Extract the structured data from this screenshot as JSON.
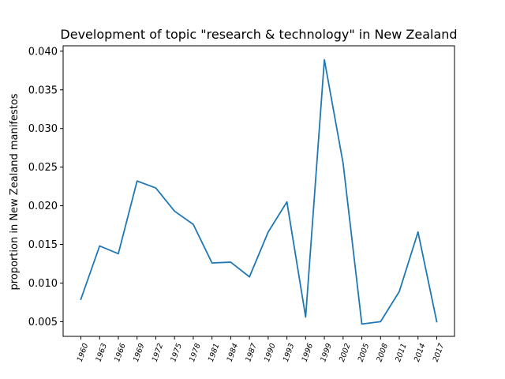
{
  "chart_data": {
    "type": "line",
    "title": "Development of topic \"research & technology\" in New Zealand",
    "xlabel": "",
    "ylabel": "proportion in New Zealand manifestos",
    "categories": [
      "1960",
      "1963",
      "1966",
      "1969",
      "1972",
      "1975",
      "1978",
      "1981",
      "1984",
      "1987",
      "1990",
      "1993",
      "1996",
      "1999",
      "2002",
      "2005",
      "2008",
      "2011",
      "2014",
      "2017"
    ],
    "series": [
      {
        "values": [
          0.0079,
          0.0148,
          0.0138,
          0.0232,
          0.0223,
          0.0193,
          0.0176,
          0.0126,
          0.0127,
          0.0108,
          0.0166,
          0.0205,
          0.0056,
          0.0389,
          0.0255,
          0.0047,
          0.005,
          0.0089,
          0.0166,
          0.005
        ],
        "color": "#1f77b4"
      }
    ],
    "ylim": [
      0.0031,
      0.0407
    ],
    "yticks": [
      "0.005",
      "0.010",
      "0.015",
      "0.020",
      "0.025",
      "0.030",
      "0.035",
      "0.040"
    ],
    "xtick_rotation_deg": 70,
    "grid": false,
    "legend": "none"
  }
}
